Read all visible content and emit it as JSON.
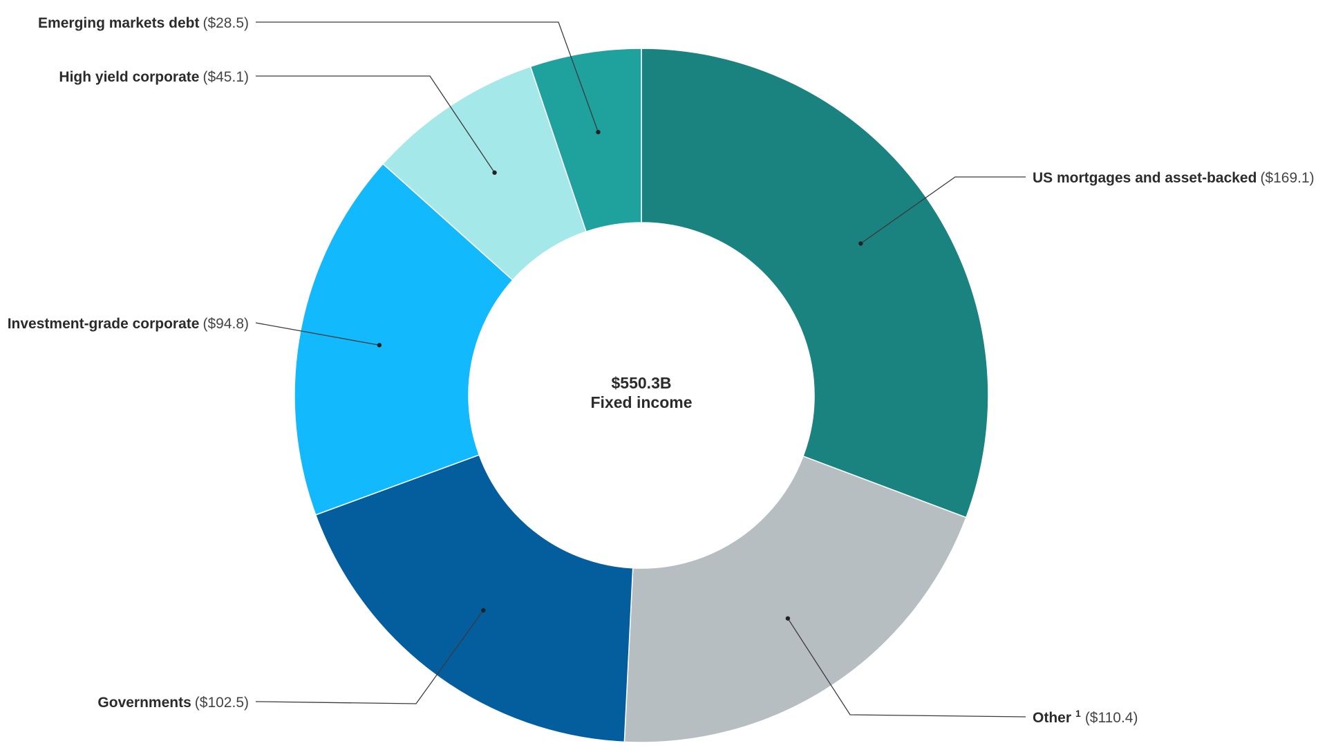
{
  "chart_data": {
    "type": "pie",
    "subtype": "donut",
    "center": {
      "value": "$550.3B",
      "label": "Fixed income"
    },
    "slices": [
      {
        "name": "US mortgages and asset-backed",
        "value": 169.1,
        "display_value": "($169.1)",
        "color": "#1a827f",
        "footnote": ""
      },
      {
        "name": "Other",
        "value": 110.4,
        "display_value": "($110.4)",
        "color": "#b6bec2",
        "footnote": "1"
      },
      {
        "name": "Governments",
        "value": 102.5,
        "display_value": "($102.5)",
        "color": "#045e9e",
        "footnote": ""
      },
      {
        "name": "Investment-grade corporate",
        "value": 94.8,
        "display_value": "($94.8)",
        "color": "#12b9fc",
        "footnote": ""
      },
      {
        "name": "High yield corporate",
        "value": 45.1,
        "display_value": "($45.1)",
        "color": "#a4e8e9",
        "footnote": ""
      },
      {
        "name": "Emerging markets debt",
        "value": 28.5,
        "display_value": "($28.5)",
        "color": "#1fa19e",
        "footnote": ""
      }
    ],
    "start": "12 o'clock",
    "direction": "clockwise"
  }
}
